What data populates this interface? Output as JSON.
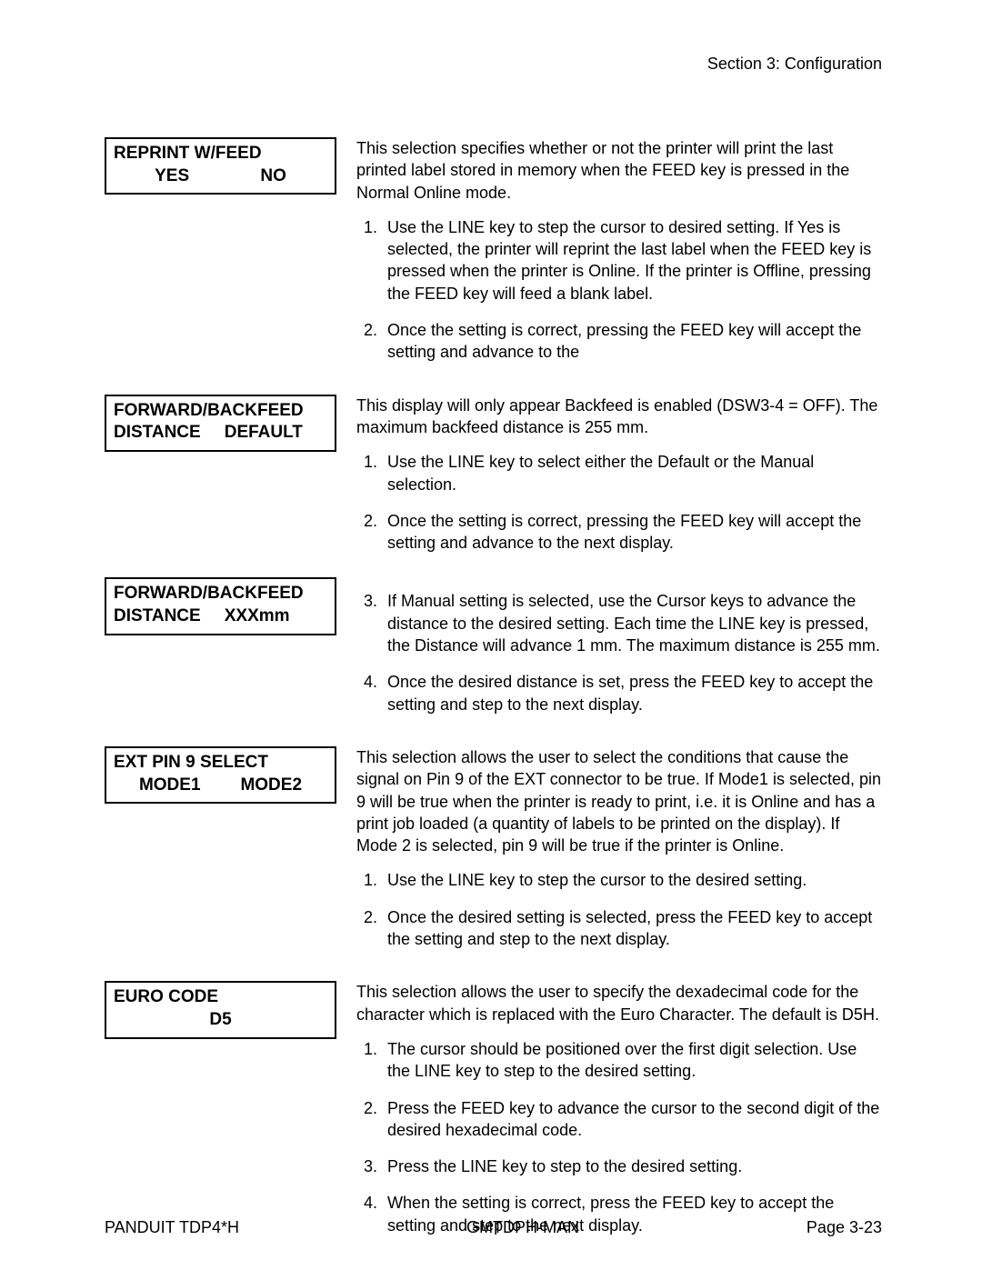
{
  "header": {
    "section": "Section 3: Configuration"
  },
  "lcd": {
    "reprint": {
      "l1": "REPRINT W/FEED",
      "opt1": "YES",
      "opt2": "NO"
    },
    "fb1": {
      "l1": "FORWARD/BACKFEED",
      "a": "DISTANCE",
      "b": "DEFAULT"
    },
    "fb2": {
      "l1": "FORWARD/BACKFEED",
      "a": "DISTANCE",
      "b": "XXXmm"
    },
    "extpin": {
      "l1": "EXT PIN 9 SELECT",
      "opt1": "MODE1",
      "opt2": "MODE2"
    },
    "euro": {
      "l1": "EURO CODE",
      "val": "D5"
    }
  },
  "text": {
    "reprint_intro": "This selection specifies whether or not the printer will print the last printed label stored in memory when the FEED key is pressed in the Normal Online mode.",
    "reprint_1": "Use the LINE key to step the cursor to desired setting. If Yes is selected, the printer will reprint the last label when the FEED key is pressed when the printer is Online. If the printer is Offline, pressing the FEED key will feed a blank label.",
    "reprint_2": "Once the setting is correct, pressing the FEED key will accept the setting and advance to the",
    "fb_intro": "This display will only appear Backfeed is enabled (DSW3-4 = OFF). The maximum backfeed distance is 255 mm.",
    "fb_1": "Use the LINE key to select either the Default or the Manual selection.",
    "fb_2": "Once the setting is correct, pressing the FEED key will accept the setting and advance to the next display.",
    "fb_3": "If Manual setting is selected, use the Cursor keys to advance the distance to the desired setting. Each time the LINE key is pressed, the Distance will advance 1 mm. The maximum distance is 255 mm.",
    "fb_4": "Once the desired distance is set, press the FEED key to accept the setting and step to the next display.",
    "ext_intro": "This selection allows the user to select the conditions that cause the signal on Pin 9 of the EXT connector to be true. If Mode1 is selected, pin 9 will be true when the printer is ready to print, i.e. it is Online and has a print job loaded (a quantity of labels to be printed on the display). If Mode 2 is selected, pin 9 will be true if the printer is Online.",
    "ext_1": "Use the LINE key to step the cursor to the desired setting.",
    "ext_2": "Once the desired setting is selected, press the FEED key to accept the setting and step to the next display.",
    "euro_intro": "This selection allows the user to specify the dexadecimal code for the character which is replaced with the Euro Character. The default is D5H.",
    "euro_1": "The cursor should be positioned over the first digit selection. Use the LINE key to step to the desired setting.",
    "euro_2": "Press the FEED key to advance the cursor to the second digit of the desired hexadecimal code.",
    "euro_3": "Press the LINE key to step to the desired setting.",
    "euro_4": "When the setting is correct, press the FEED key to accept the setting and step to the next display."
  },
  "footer": {
    "left": "PANDUIT TDP4*H",
    "center": "GMTDPH-MAN",
    "right": "Page 3-23"
  }
}
